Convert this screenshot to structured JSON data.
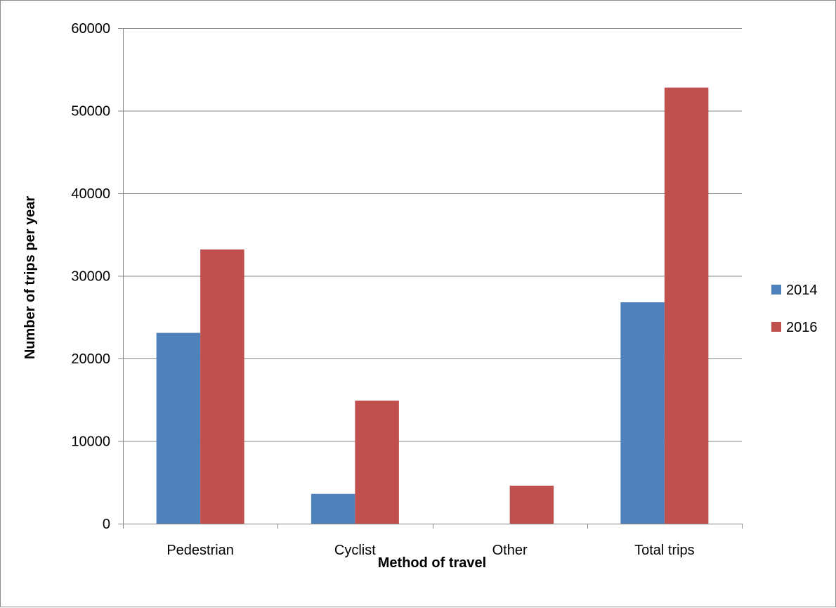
{
  "chart_data": {
    "type": "bar",
    "title": "",
    "xlabel": "Method of travel",
    "ylabel": "Number of trips per year",
    "categories": [
      "Pedestrian",
      "Cyclist",
      "Other",
      "Total trips"
    ],
    "series": [
      {
        "name": "2014",
        "color": "#4F81BD",
        "values": [
          23100,
          3600,
          0,
          26800
        ]
      },
      {
        "name": "2016",
        "color": "#C0504D",
        "values": [
          33200,
          14900,
          4600,
          52800
        ]
      }
    ],
    "ylim": [
      0,
      60000
    ],
    "yticks": [
      0,
      10000,
      20000,
      30000,
      40000,
      50000,
      60000
    ],
    "grid": true,
    "legend_position": "right",
    "gridline_color": "#868686",
    "axis_color": "#868686"
  }
}
